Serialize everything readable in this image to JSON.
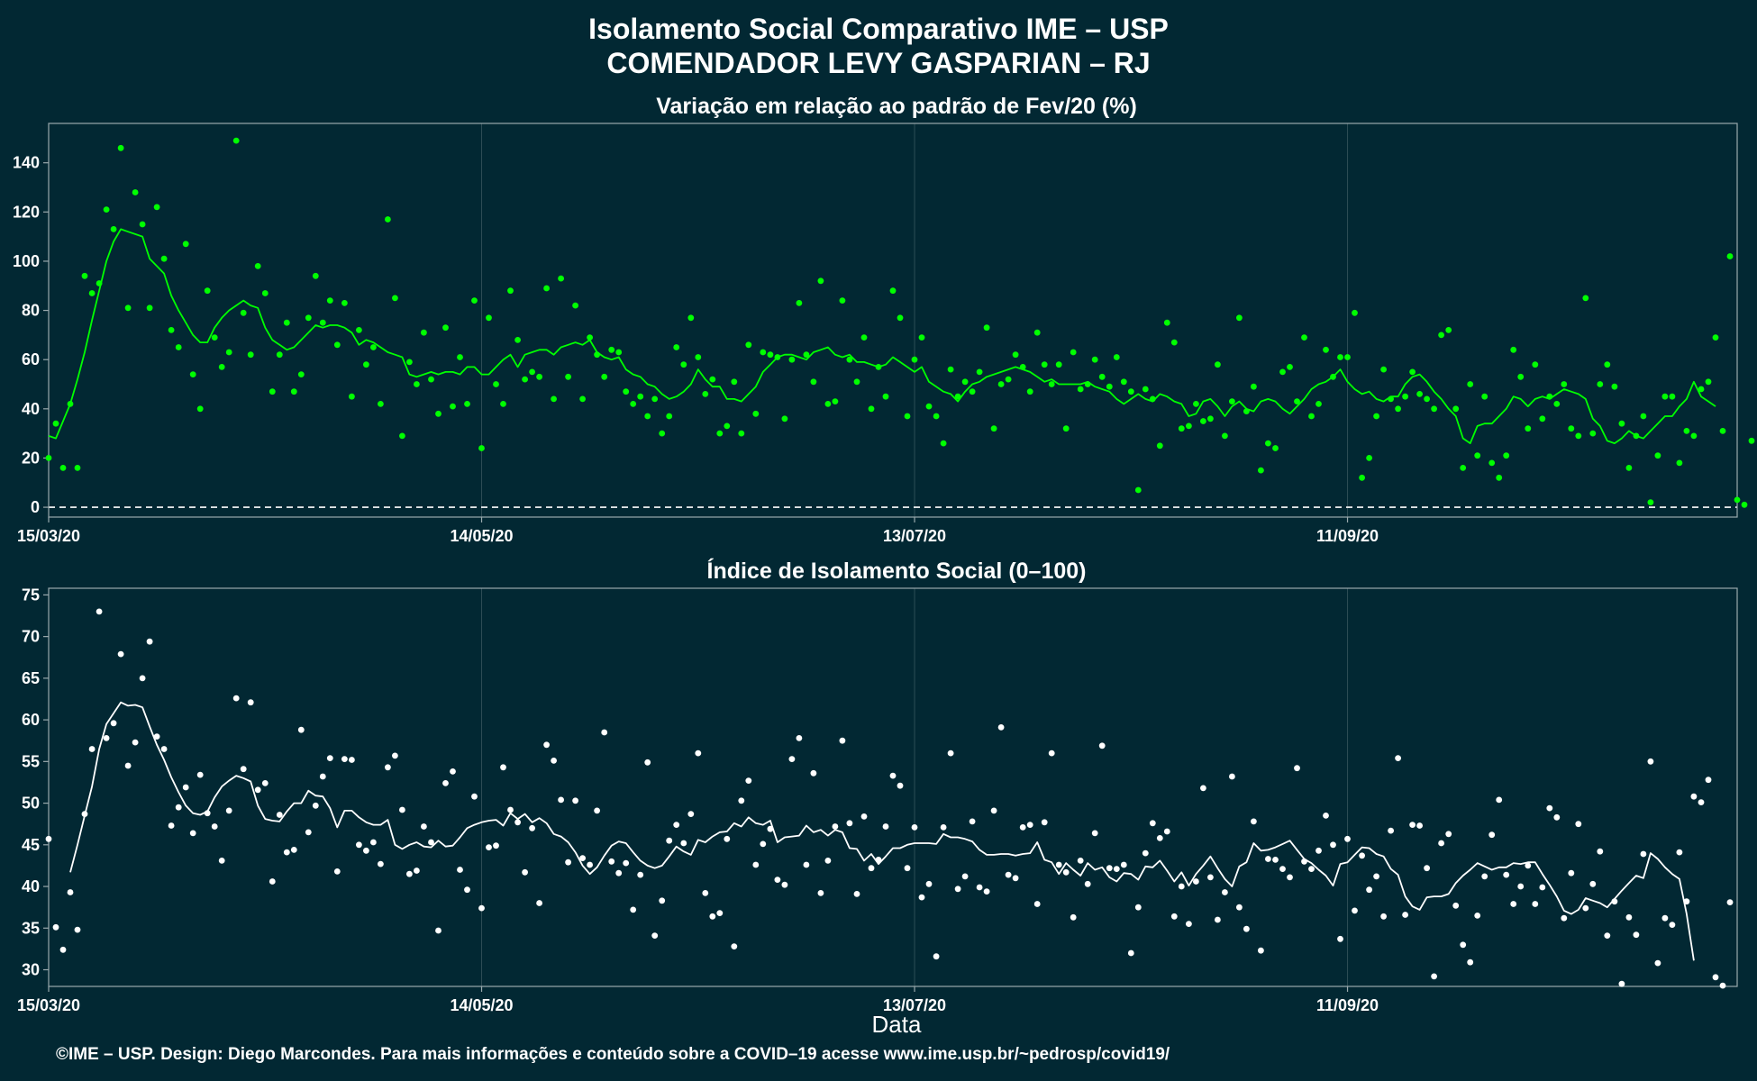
{
  "title_line1": "Isolamento Social Comparativo IME – USP",
  "title_line2": "COMENDADOR LEVY GASPARIAN – RJ",
  "xlabel": "Data",
  "footer": "©IME – USP. Design: Diego Marcondes. Para mais informações e conteúdo sobre a COVID–19 acesse www.ime.usp.br/~pedrosp/covid19/",
  "colors": {
    "background": "#022833",
    "panel1_series": "#00ff00",
    "panel2_series": "#ffffff",
    "grid": "#2e4d56",
    "frame": "#9aa9ad"
  },
  "chart_data": [
    {
      "type": "scatter",
      "title": "Variação em relação ao padrão de Fev/20 (%)",
      "xlabel": "",
      "ylabel": "",
      "x_start_date": "15/03/20",
      "x_ticks": [
        "15/03/20",
        "14/05/20",
        "13/07/20",
        "11/09/20"
      ],
      "x_tick_days": [
        0,
        60,
        120,
        180
      ],
      "xlim_days": [
        0,
        234
      ],
      "ylim": [
        -4,
        156
      ],
      "y_ticks": [
        0,
        20,
        40,
        60,
        80,
        100,
        120,
        140
      ],
      "reference_line": 0,
      "series_daily": [
        20,
        34,
        16,
        42,
        16,
        94,
        87,
        91,
        121,
        113,
        146,
        81,
        128,
        115,
        81,
        122,
        101,
        72,
        65,
        107,
        54,
        40,
        88,
        69,
        57,
        63,
        149,
        79,
        62,
        98,
        87,
        47,
        62,
        75,
        47,
        54,
        77,
        94,
        75,
        84,
        66,
        83,
        45,
        72,
        58,
        65,
        42,
        117,
        85,
        29,
        59,
        50,
        71,
        52,
        38,
        73,
        41,
        61,
        42,
        84,
        24,
        77,
        50,
        42,
        88,
        68,
        52,
        55,
        53,
        89,
        44,
        93,
        53,
        82,
        44,
        69,
        62,
        53,
        64,
        63,
        47,
        42,
        45,
        37,
        44,
        30,
        37,
        65,
        58,
        77,
        61,
        46,
        52,
        30,
        33,
        51,
        30,
        66,
        38,
        63,
        62,
        61,
        36,
        60,
        83,
        62,
        51,
        92,
        42,
        43,
        84,
        60,
        51,
        69,
        40,
        57,
        45,
        88,
        77,
        37,
        60,
        69,
        41,
        37,
        26,
        56,
        45,
        51,
        47,
        55,
        73,
        32,
        50,
        52,
        62,
        57,
        47,
        71,
        58,
        50,
        58,
        32,
        63,
        48,
        50,
        60,
        53,
        49,
        61,
        51,
        47,
        7,
        48,
        44,
        25,
        75,
        67,
        32,
        33,
        42,
        35,
        36,
        58,
        29,
        43,
        77,
        39,
        49,
        15,
        26,
        24,
        55,
        57,
        43,
        69,
        37,
        42,
        64,
        53,
        61,
        61,
        79,
        12,
        20,
        37,
        56,
        44,
        40,
        45,
        55,
        46,
        44,
        40,
        70,
        72,
        40,
        16,
        50,
        21,
        45,
        18,
        12,
        21,
        64,
        53,
        32,
        58,
        36,
        45,
        42,
        50,
        32,
        29,
        85,
        30,
        50,
        58,
        49,
        34,
        16,
        29,
        37,
        2,
        21,
        45,
        45,
        18,
        31,
        29,
        48,
        51,
        69,
        31,
        102,
        3,
        1,
        27
      ],
      "series_avg": [
        29,
        28,
        35,
        42,
        52,
        63,
        76,
        88,
        100,
        108,
        113,
        112,
        111,
        110,
        101,
        98,
        95,
        86,
        80,
        75,
        70,
        67,
        67,
        73,
        77,
        80,
        82,
        84,
        82,
        81,
        73,
        68,
        66,
        64,
        65,
        68,
        71,
        74,
        73,
        74,
        74,
        73,
        71,
        66,
        68,
        67,
        65,
        63,
        62,
        61,
        54,
        53,
        54,
        55,
        54,
        55,
        55,
        54,
        57,
        57,
        54,
        54,
        57,
        60,
        62,
        57,
        62,
        63,
        64,
        64,
        62,
        65,
        66,
        67,
        66,
        68,
        63,
        61,
        60,
        61,
        56,
        54,
        53,
        50,
        49,
        46,
        44,
        45,
        47,
        50,
        56,
        52,
        49,
        49,
        44,
        44,
        43,
        46,
        49,
        55,
        58,
        61,
        62,
        62,
        61,
        60,
        63,
        64,
        65,
        62,
        61,
        62,
        59,
        59,
        58,
        57,
        58,
        61,
        59,
        57,
        55,
        57,
        51,
        49,
        47,
        46,
        43,
        47,
        50,
        51,
        53,
        54,
        55,
        56,
        57,
        56,
        55,
        53,
        51,
        52,
        50,
        50,
        50,
        50,
        51,
        49,
        48,
        47,
        44,
        42,
        44,
        46,
        44,
        43,
        46,
        45,
        43,
        42,
        37,
        38,
        43,
        44,
        41,
        37,
        41,
        43,
        40,
        39,
        43,
        44,
        43,
        40,
        38,
        41,
        44,
        48,
        50,
        51,
        53,
        56,
        51,
        48,
        46,
        47,
        44,
        43,
        45,
        45,
        50,
        53,
        54,
        51,
        47,
        44,
        40,
        37,
        28,
        26,
        33,
        34,
        34,
        37,
        40,
        45,
        44,
        41,
        44,
        45,
        44,
        46,
        48,
        47,
        46,
        44,
        36,
        33,
        27,
        26,
        28,
        31,
        29,
        28,
        31,
        34,
        37,
        37,
        41,
        44,
        51,
        45,
        43,
        41
      ],
      "avg_start_day": 0
    },
    {
      "type": "scatter",
      "title": "Índice de Isolamento Social (0–100)",
      "xlabel": "Data",
      "ylabel": "",
      "x_start_date": "15/03/20",
      "x_ticks": [
        "15/03/20",
        "14/05/20",
        "13/07/20",
        "11/09/20"
      ],
      "x_tick_days": [
        0,
        60,
        120,
        180
      ],
      "xlim_days": [
        0,
        234
      ],
      "ylim": [
        28.0,
        75.8
      ],
      "y_ticks": [
        30,
        35,
        40,
        45,
        50,
        55,
        60,
        65,
        70,
        75
      ],
      "series_daily": [
        45.7,
        35.1,
        32.4,
        39.3,
        34.8,
        48.7,
        56.5,
        73.0,
        57.8,
        59.6,
        67.9,
        54.5,
        57.3,
        65.0,
        69.4,
        58.0,
        56.5,
        47.3,
        49.5,
        51.9,
        46.4,
        53.4,
        48.8,
        47.2,
        43.1,
        49.1,
        62.6,
        54.1,
        62.1,
        51.6,
        52.4,
        40.6,
        48.6,
        44.1,
        44.4,
        58.8,
        46.5,
        49.7,
        53.2,
        55.4,
        41.8,
        55.3,
        55.2,
        45.0,
        44.3,
        45.3,
        42.7,
        54.3,
        55.7,
        49.2,
        41.5,
        41.9,
        47.2,
        45.3,
        34.7,
        52.4,
        53.8,
        42.0,
        39.6,
        50.8,
        37.4,
        44.7,
        44.9,
        54.3,
        49.2,
        47.7,
        41.7,
        47.0,
        38.0,
        57.0,
        55.1,
        50.4,
        42.9,
        50.3,
        43.4,
        42.6,
        49.1,
        58.5,
        43.0,
        41.6,
        42.8,
        37.2,
        41.4,
        54.9,
        34.1,
        38.3,
        45.5,
        47.4,
        45.2,
        48.7,
        56.0,
        39.2,
        36.4,
        36.8,
        45.7,
        32.8,
        50.3,
        52.7,
        42.6,
        45.1,
        46.9,
        40.8,
        40.2,
        55.3,
        57.8,
        42.6,
        53.6,
        39.2,
        43.1,
        47.2,
        57.5,
        47.6,
        39.1,
        48.4,
        42.2,
        43.2,
        47.2,
        53.3,
        52.1,
        42.2,
        47.1,
        38.7,
        40.3,
        31.6,
        47.1,
        56.0,
        39.7,
        41.2,
        47.8,
        39.9,
        39.4,
        49.1,
        59.1,
        41.4,
        41.0,
        47.1,
        47.4,
        37.9,
        47.7,
        56.0,
        42.6,
        41.7,
        36.3,
        43.1,
        40.3,
        46.4,
        56.9,
        42.2,
        42.1,
        42.6,
        32.0,
        37.5,
        44.0,
        47.6,
        45.8,
        46.6,
        36.4,
        40.0,
        35.5,
        40.6,
        51.8,
        41.1,
        36.0,
        39.3,
        53.2,
        37.5,
        34.9,
        47.8,
        32.3,
        43.3,
        43.2,
        42.1,
        41.1,
        54.2,
        43.0,
        42.1,
        44.3,
        48.5,
        45.0,
        33.7,
        45.7,
        37.1,
        43.7,
        39.6,
        41.2,
        36.4,
        46.7,
        55.4,
        36.6,
        47.4,
        47.3,
        42.2,
        29.2,
        45.2,
        46.3,
        37.7,
        33.0,
        30.9,
        36.5,
        41.2,
        46.2,
        50.4,
        41.4,
        37.9,
        40.0,
        42.5,
        37.9,
        39.9,
        49.4,
        48.3,
        36.2,
        41.6,
        47.5,
        37.4,
        40.3,
        44.2,
        34.1,
        38.2,
        28.3,
        36.3,
        34.2,
        43.9,
        55.0,
        30.8,
        36.2,
        35.4,
        44.1,
        38.2,
        50.8,
        50.1,
        52.8,
        29.1,
        28.1,
        38.1
      ],
      "series_avg": [
        41.7,
        45.0,
        48.5,
        52.0,
        56.5,
        59.5,
        60.8,
        62.1,
        61.7,
        61.8,
        61.5,
        59.2,
        57.0,
        55.2,
        53.1,
        51.3,
        49.7,
        48.8,
        48.6,
        49.0,
        50.7,
        52.0,
        52.7,
        53.3,
        53.0,
        52.6,
        49.7,
        48.1,
        47.9,
        47.8,
        49.0,
        50.0,
        50.0,
        51.5,
        50.9,
        50.8,
        49.4,
        47.1,
        49.1,
        49.1,
        48.3,
        47.7,
        47.4,
        47.4,
        48.0,
        45.0,
        44.5,
        45.0,
        45.3,
        44.8,
        44.7,
        45.5,
        44.8,
        44.9,
        45.9,
        47.0,
        47.4,
        47.7,
        47.9,
        48.0,
        47.3,
        48.8,
        48.1,
        48.7,
        47.7,
        48.2,
        47.6,
        46.3,
        46.0,
        45.3,
        44.1,
        42.5,
        41.5,
        42.3,
        43.7,
        44.9,
        45.4,
        45.2,
        44.1,
        43.1,
        42.5,
        42.2,
        42.5,
        43.6,
        44.8,
        44.2,
        43.8,
        45.6,
        45.3,
        46.0,
        46.5,
        46.6,
        47.6,
        47.2,
        48.3,
        47.6,
        47.4,
        47.9,
        45.3,
        45.9,
        46.0,
        46.1,
        47.3,
        46.5,
        46.8,
        46.1,
        46.8,
        46.5,
        44.6,
        44.5,
        43.1,
        43.9,
        42.7,
        43.6,
        44.6,
        44.6,
        45.0,
        45.2,
        45.2,
        45.2,
        45.1,
        46.3,
        45.9,
        45.9,
        45.7,
        45.4,
        44.4,
        43.8,
        43.8,
        43.9,
        43.9,
        43.7,
        43.9,
        44.0,
        45.3,
        43.2,
        42.9,
        41.5,
        42.8,
        42.0,
        41.3,
        42.8,
        42.0,
        42.3,
        41.1,
        40.6,
        41.6,
        41.5,
        40.8,
        42.4,
        42.3,
        43.1,
        41.9,
        40.6,
        41.7,
        40.1,
        41.5,
        42.5,
        43.6,
        42.2,
        40.9,
        40.0,
        42.4,
        42.9,
        45.2,
        44.3,
        44.4,
        44.7,
        45.1,
        45.5,
        44.4,
        43.3,
        42.8,
        42.0,
        41.3,
        40.1,
        42.7,
        42.9,
        43.8,
        44.7,
        44.6,
        43.9,
        43.6,
        42.1,
        41.4,
        38.8,
        37.6,
        37.2,
        38.7,
        38.8,
        38.8,
        39.1,
        40.4,
        41.3,
        42.0,
        42.8,
        42.4,
        42.0,
        42.3,
        42.3,
        42.8,
        42.7,
        42.9,
        42.9,
        41.5,
        40.2,
        38.8,
        37.1,
        36.7,
        37.2,
        38.6,
        38.3,
        38.0,
        37.5,
        38.5,
        39.5,
        40.4,
        41.3,
        41.0,
        44.0,
        43.3,
        42.3,
        41.5,
        40.9,
        36.7,
        31.1
      ],
      "avg_start_day": 3
    }
  ]
}
